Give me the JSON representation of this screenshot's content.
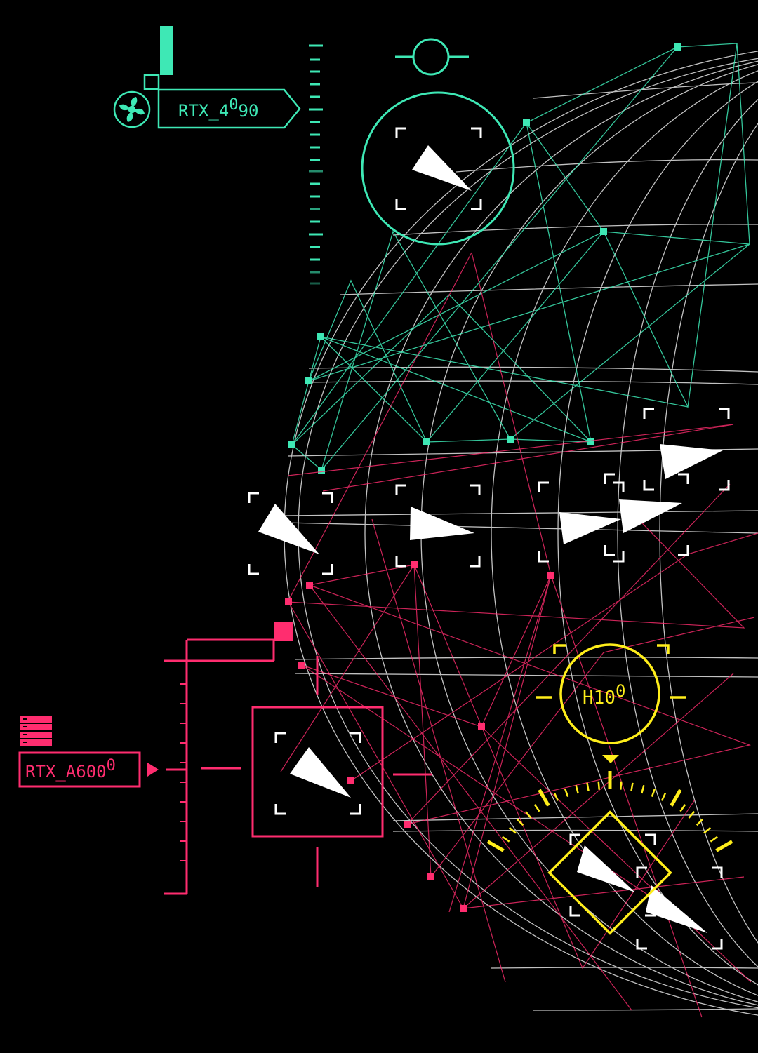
{
  "labels": {
    "teal_gpu": "RTX_4",
    "teal_gpu_sup": "0",
    "teal_gpu_tail": "90",
    "pink_gpu": "RTX_A600",
    "pink_gpu_sup": "0",
    "yellow_gpu": "H10",
    "yellow_gpu_sup": "0"
  },
  "colors": {
    "background": "#000000",
    "teal": "#3ee8b5",
    "pink": "#ff2d6f",
    "yellow": "#ffee1a",
    "grid": "#d8d8d8",
    "cursor": "#ffffff"
  },
  "icons": {
    "teal_group": "fan-icon",
    "pink_group": "server-stack-icon",
    "cursor": "pointer-arrow-icon"
  }
}
